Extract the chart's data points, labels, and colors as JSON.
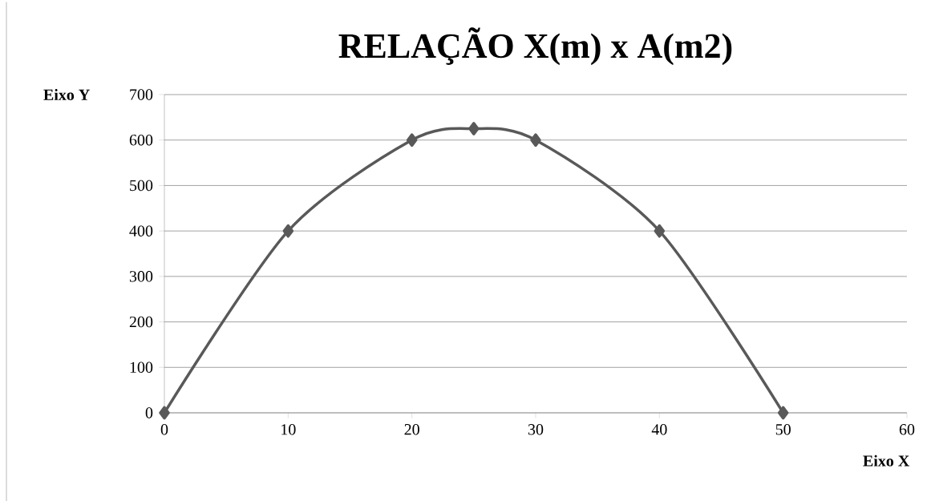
{
  "chart_data": {
    "type": "line",
    "title": "RELAÇÃO X(m) x A(m2)",
    "xlabel": "Eixo X",
    "ylabel": "Eixo Y",
    "x": [
      0,
      10,
      20,
      25,
      30,
      40,
      50
    ],
    "series": [
      {
        "color": "#595959",
        "values": [
          0,
          400,
          600,
          625,
          600,
          400,
          0
        ]
      }
    ],
    "xlim": [
      0,
      60
    ],
    "ylim": [
      0,
      700
    ],
    "xticks": [
      0,
      10,
      20,
      30,
      40,
      50,
      60
    ],
    "yticks": [
      0,
      100,
      200,
      300,
      400,
      500,
      600,
      700
    ],
    "grid": "y",
    "marker": "diamond",
    "line_style": "solid"
  }
}
